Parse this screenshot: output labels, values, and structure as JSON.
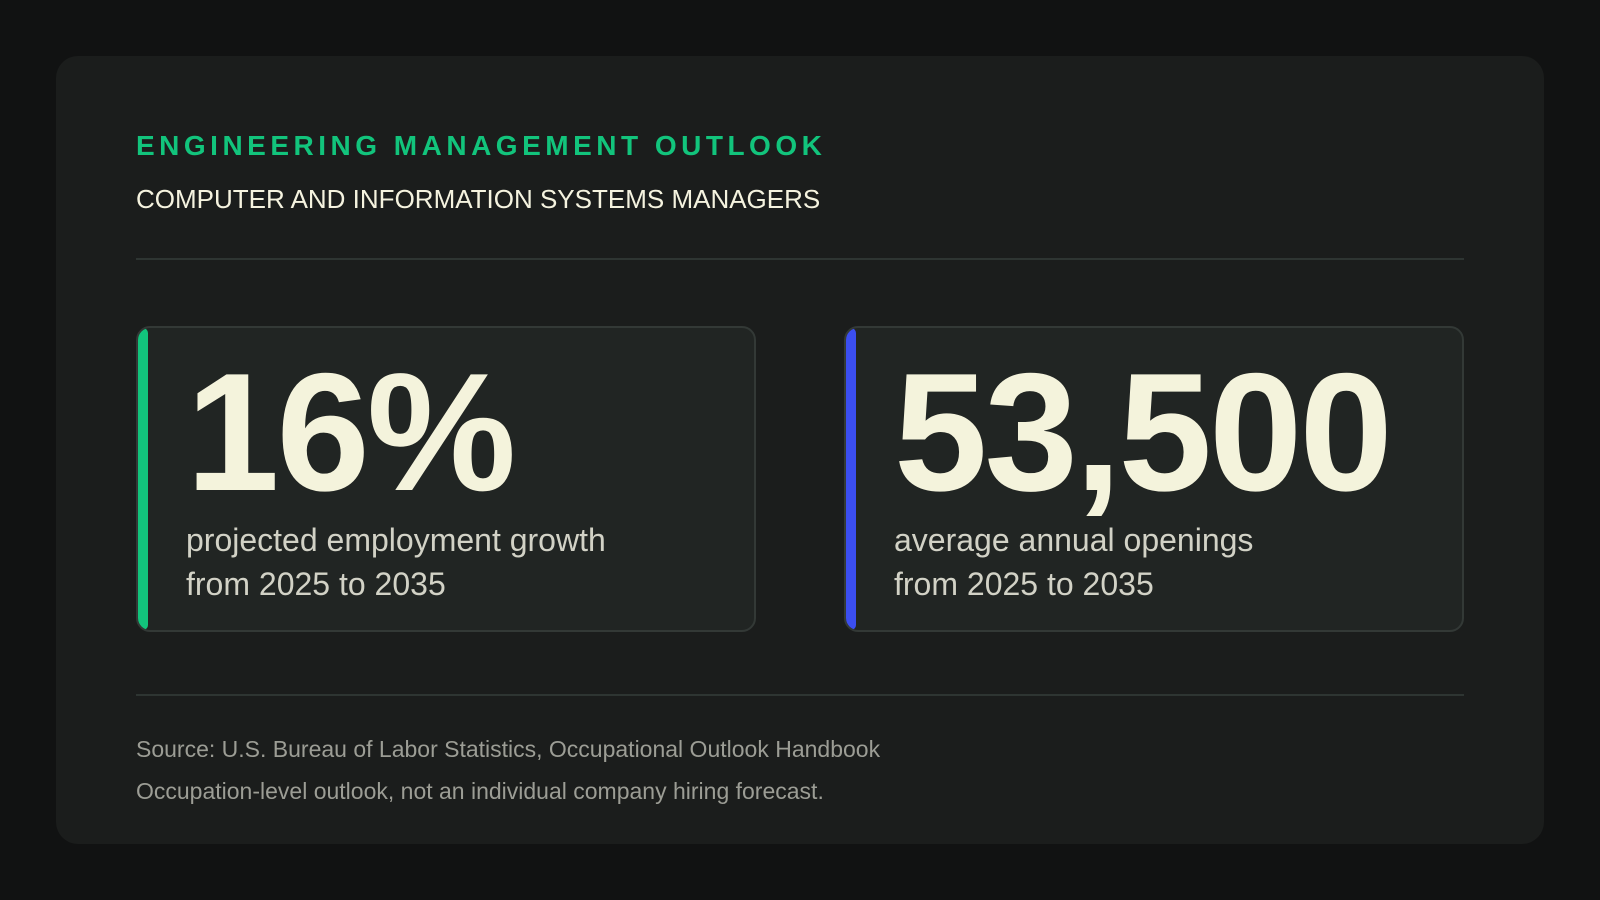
{
  "header": {
    "eyebrow": "ENGINEERING MANAGEMENT OUTLOOK",
    "subtitle": "COMPUTER AND INFORMATION SYSTEMS MANAGERS"
  },
  "stats": [
    {
      "value": "16%",
      "label_line1": "projected employment growth",
      "label_line2": "from 2025 to 2035",
      "accent_color": "#12c47c"
    },
    {
      "value": "53,500",
      "label_line1": "average annual openings",
      "label_line2": "from 2025 to 2035",
      "accent_color": "#3b4ef0"
    }
  ],
  "footer": {
    "source": "Source: U.S. Bureau of Labor Statistics, Occupational Outlook Handbook",
    "note": "Occupation-level outlook, not an individual company hiring forecast."
  },
  "colors": {
    "background": "#111212",
    "card": "#1b1d1c",
    "accent_green": "#12c47c",
    "accent_blue": "#3b4ef0",
    "value_text": "#f4f3dc"
  }
}
